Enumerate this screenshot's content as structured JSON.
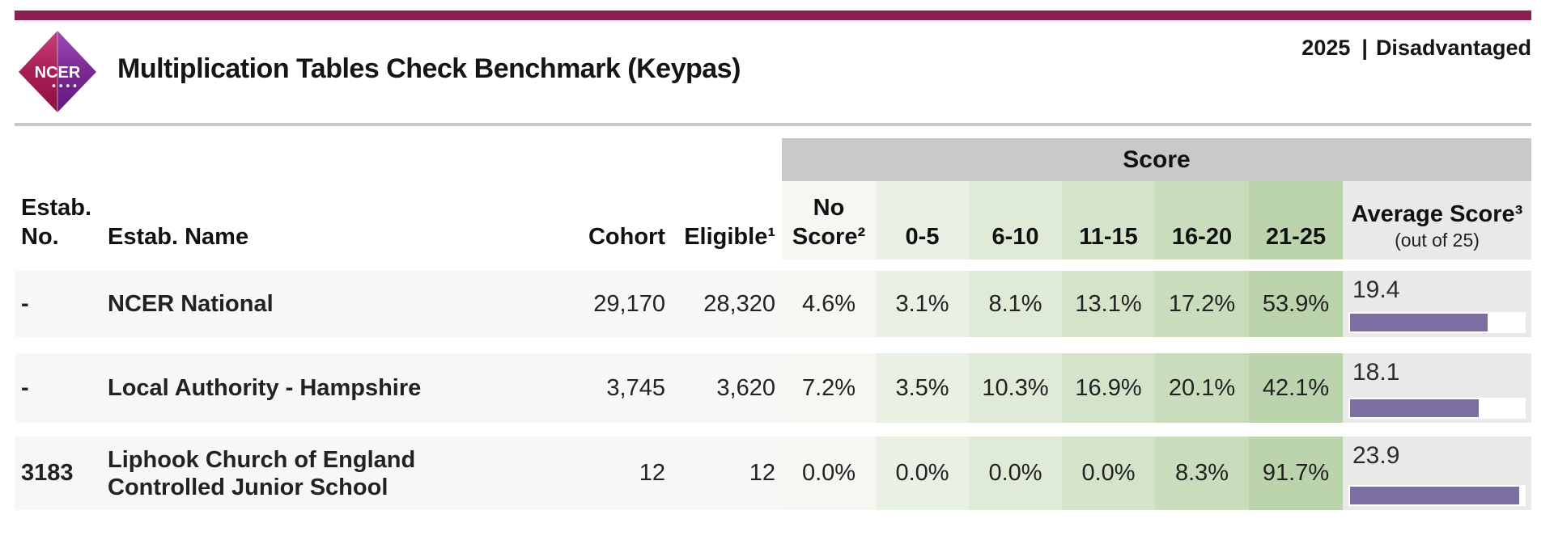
{
  "header": {
    "title": "Multiplication Tables Check Benchmark (Keypas)",
    "year": "2025",
    "separator": "|",
    "cohort_filter": "Disadvantaged",
    "logo": {
      "text": "NCER",
      "dots": "••••"
    }
  },
  "table": {
    "score_group_label": "Score",
    "columns": {
      "estab_no": "Estab. No.",
      "estab_name": "Estab. Name",
      "cohort": "Cohort",
      "eligible": "Eligible¹",
      "no_score": "No Score²",
      "bands": [
        "0-5",
        "6-10",
        "11-15",
        "16-20",
        "21-25"
      ],
      "average": "Average Score³",
      "average_sub": "(out of 25)"
    },
    "rows": [
      {
        "estab_no": "-",
        "name": "NCER National",
        "cohort": "29,170",
        "eligible": "28,320",
        "no_score": "4.6%",
        "bands": [
          "3.1%",
          "8.1%",
          "13.1%",
          "17.2%",
          "53.9%"
        ],
        "avg": "19.4",
        "avg_bar_pct": 77.6
      },
      {
        "estab_no": "-",
        "name": "Local Authority - Hampshire",
        "cohort": "3,745",
        "eligible": "3,620",
        "no_score": "7.2%",
        "bands": [
          "3.5%",
          "10.3%",
          "16.9%",
          "20.1%",
          "42.1%"
        ],
        "avg": "18.1",
        "avg_bar_pct": 72.4
      },
      {
        "estab_no": "3183",
        "name": "Liphook Church of England Controlled Junior School",
        "cohort": "12",
        "eligible": "12",
        "no_score": "0.0%",
        "bands": [
          "0.0%",
          "0.0%",
          "0.0%",
          "8.3%",
          "91.7%"
        ],
        "avg": "23.9",
        "avg_bar_pct": 95.6
      }
    ]
  },
  "colors": {
    "accent_maroon": "#8e1e51",
    "bar_purple": "#7c6fa0",
    "score_group_gray": "#c9c9c9",
    "average_cell_gray": "#e9e9e9",
    "row_gray": "#f7f7f7",
    "band_greens": [
      "#e9f0e4",
      "#dfead7",
      "#d4e3ca",
      "#c9dcbc",
      "#bcd4ad"
    ],
    "logo_left": "#a91d55",
    "logo_right": "#7b2a93"
  }
}
